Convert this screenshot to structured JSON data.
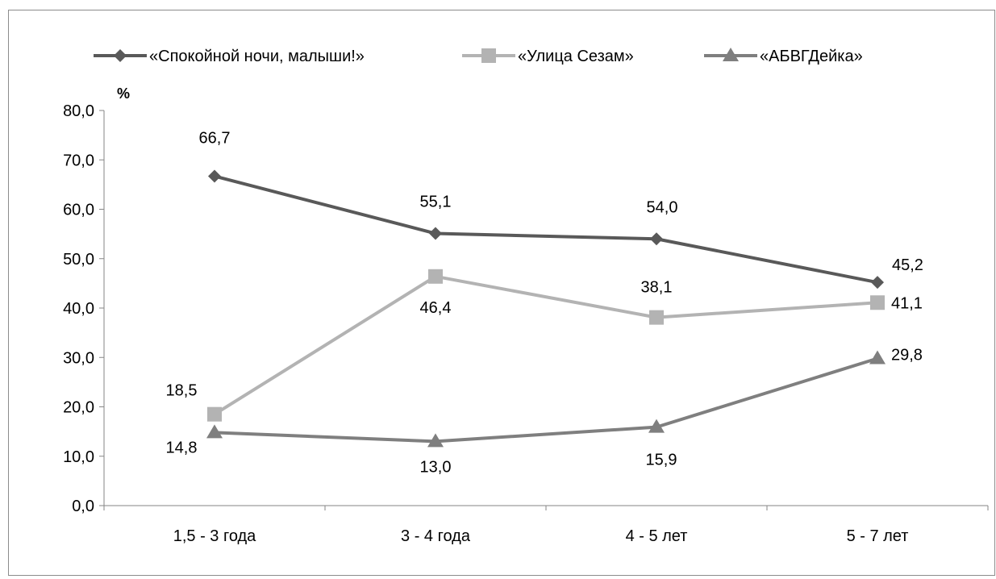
{
  "chart_data": {
    "type": "line",
    "title": "",
    "xlabel": "",
    "ylabel": "%",
    "ylim": [
      0,
      80
    ],
    "y_ticks": [
      "0,0",
      "10,0",
      "20,0",
      "30,0",
      "40,0",
      "50,0",
      "60,0",
      "70,0",
      "80,0"
    ],
    "categories": [
      "1,5 - 3 года",
      "3 - 4 года",
      "4 - 5 лет",
      "5 - 7 лет"
    ],
    "grid": false,
    "legend_position": "top",
    "series": [
      {
        "name": "«Спокойной ночи, малыши!»",
        "marker": "diamond",
        "color": "#595959",
        "values": [
          66.7,
          55.1,
          54.0,
          45.2
        ],
        "labels": [
          "66,7",
          "55,1",
          "54,0",
          "45,2"
        ]
      },
      {
        "name": "«Улица Сезам»",
        "marker": "square",
        "color": "#b3b3b3",
        "values": [
          18.5,
          46.4,
          38.1,
          41.1
        ],
        "labels": [
          "18,5",
          "46,4",
          "38,1",
          "41,1"
        ]
      },
      {
        "name": "«АБВГДейка»",
        "marker": "triangle",
        "color": "#7f7f7f",
        "values": [
          14.8,
          13.0,
          15.9,
          29.8
        ],
        "labels": [
          "14,8",
          "13,0",
          "15,9",
          "29,8"
        ]
      }
    ]
  }
}
